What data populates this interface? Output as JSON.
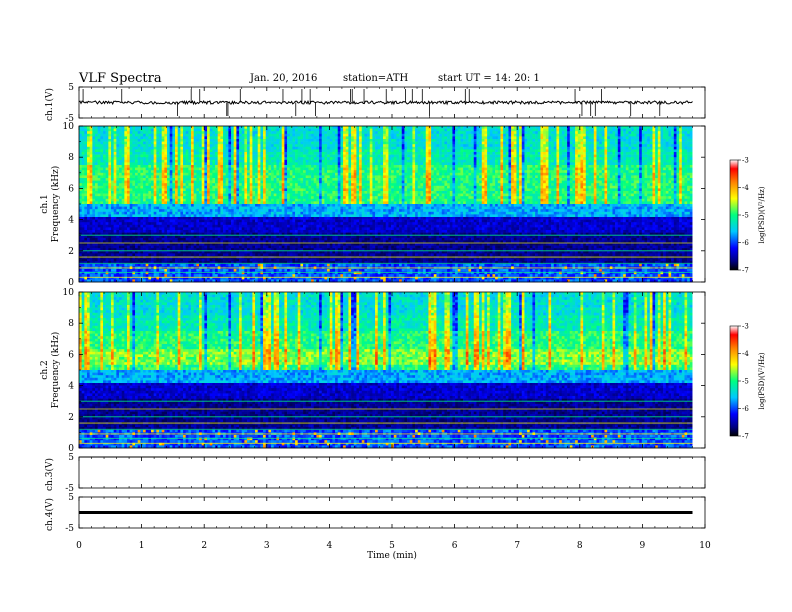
{
  "header": {
    "title": "VLF  Spectra",
    "date": "Jan. 20, 2016",
    "station": "station=ATH",
    "start": "start  UT  =    14: 20: 1"
  },
  "colors": {
    "trace": "#000000",
    "colormap": [
      "#000000",
      "#000080",
      "#0000ff",
      "#00c8ff",
      "#00ff80",
      "#ffff00",
      "#ff8000",
      "#ff0000",
      "#ffffff"
    ]
  },
  "chart_data": [
    {
      "id": "ch1-waveform",
      "type": "line",
      "ylabel": "ch.1(V)",
      "ylim": [
        -5,
        5
      ],
      "yticks": [
        "5",
        "-5"
      ],
      "xlim": [
        0,
        10
      ],
      "baseline": 0,
      "grid": false
    },
    {
      "id": "ch1-spectrogram",
      "type": "heatmap",
      "ylabel_channel": "ch.1",
      "ylabel": "Frequency  (kHz)",
      "ylim": [
        0,
        10
      ],
      "yticks": [
        "0",
        "2",
        "4",
        "6",
        "8",
        "10"
      ],
      "xlim": [
        0,
        10
      ],
      "data_end_min": 9.8,
      "colorbar": {
        "label": "log(PSD)(V²/Hz)",
        "range": [
          -7,
          -3
        ],
        "ticks": [
          "-3",
          "-4",
          "-5",
          "-6",
          "-7"
        ]
      }
    },
    {
      "id": "ch2-spectrogram",
      "type": "heatmap",
      "ylabel_channel": "ch.2",
      "ylabel": "Frequency  (kHz)",
      "ylim": [
        0,
        10
      ],
      "yticks": [
        "0",
        "2",
        "4",
        "6",
        "8",
        "10"
      ],
      "xlim": [
        0,
        10
      ],
      "data_end_min": 9.8,
      "colorbar": {
        "label": "log(PSD)(V²/Hz)",
        "range": [
          -7,
          -3
        ],
        "ticks": [
          "-3",
          "-4",
          "-5",
          "-6",
          "-7"
        ]
      }
    },
    {
      "id": "ch3-waveform",
      "type": "line",
      "ylabel": "ch.3(V)",
      "ylim": [
        -5,
        5
      ],
      "yticks": [
        "5",
        "-5"
      ],
      "xlim": [
        0,
        10
      ],
      "baseline": 5,
      "grid": false
    },
    {
      "id": "ch4-waveform",
      "type": "line",
      "ylabel": "ch.4(V)",
      "ylim": [
        -5,
        5
      ],
      "yticks": [
        "5",
        "-5"
      ],
      "xlim": [
        0,
        10
      ],
      "baseline": 0,
      "grid": false
    }
  ],
  "xaxis": {
    "label": "Time  (min)",
    "ticks": [
      "0",
      "1",
      "2",
      "3",
      "4",
      "5",
      "6",
      "7",
      "8",
      "9",
      "10"
    ]
  }
}
